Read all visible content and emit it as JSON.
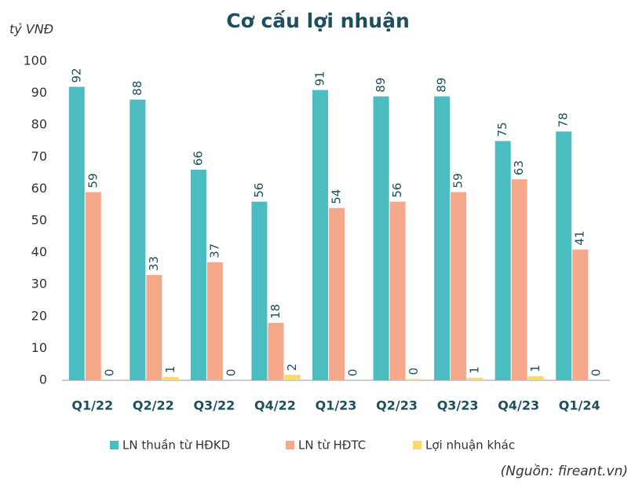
{
  "chart_data": {
    "type": "bar",
    "title": "Cơ cấu lợi nhuận",
    "y_label": "tỷ VNĐ",
    "source": "(Nguồn: fireant.vn)",
    "categories": [
      "Q1/22",
      "Q2/22",
      "Q3/22",
      "Q4/22",
      "Q1/23",
      "Q2/23",
      "Q3/23",
      "Q4/23",
      "Q1/24"
    ],
    "series": [
      {
        "name": "LN thuần từ HĐKD",
        "color": "#4bbcbf",
        "values": [
          92,
          88,
          66,
          56,
          91,
          89,
          89,
          75,
          78
        ]
      },
      {
        "name": "LN từ HĐTC",
        "color": "#f6a98a",
        "values": [
          59,
          33,
          37,
          18,
          54,
          56,
          59,
          63,
          41
        ]
      },
      {
        "name": "Lợi nhuận khác",
        "color": "#fdd96b",
        "values": [
          0,
          1,
          0,
          1.7,
          0,
          0.4,
          0.8,
          1.3,
          0
        ],
        "value_labels": [
          "0",
          "1",
          "0",
          "2",
          "0",
          "0",
          "1",
          "1",
          "0"
        ]
      }
    ],
    "ylim": [
      0,
      100
    ],
    "yticks": [
      0,
      10,
      20,
      30,
      40,
      50,
      60,
      70,
      80,
      90,
      100
    ],
    "grid": false,
    "legend": "bottom"
  }
}
